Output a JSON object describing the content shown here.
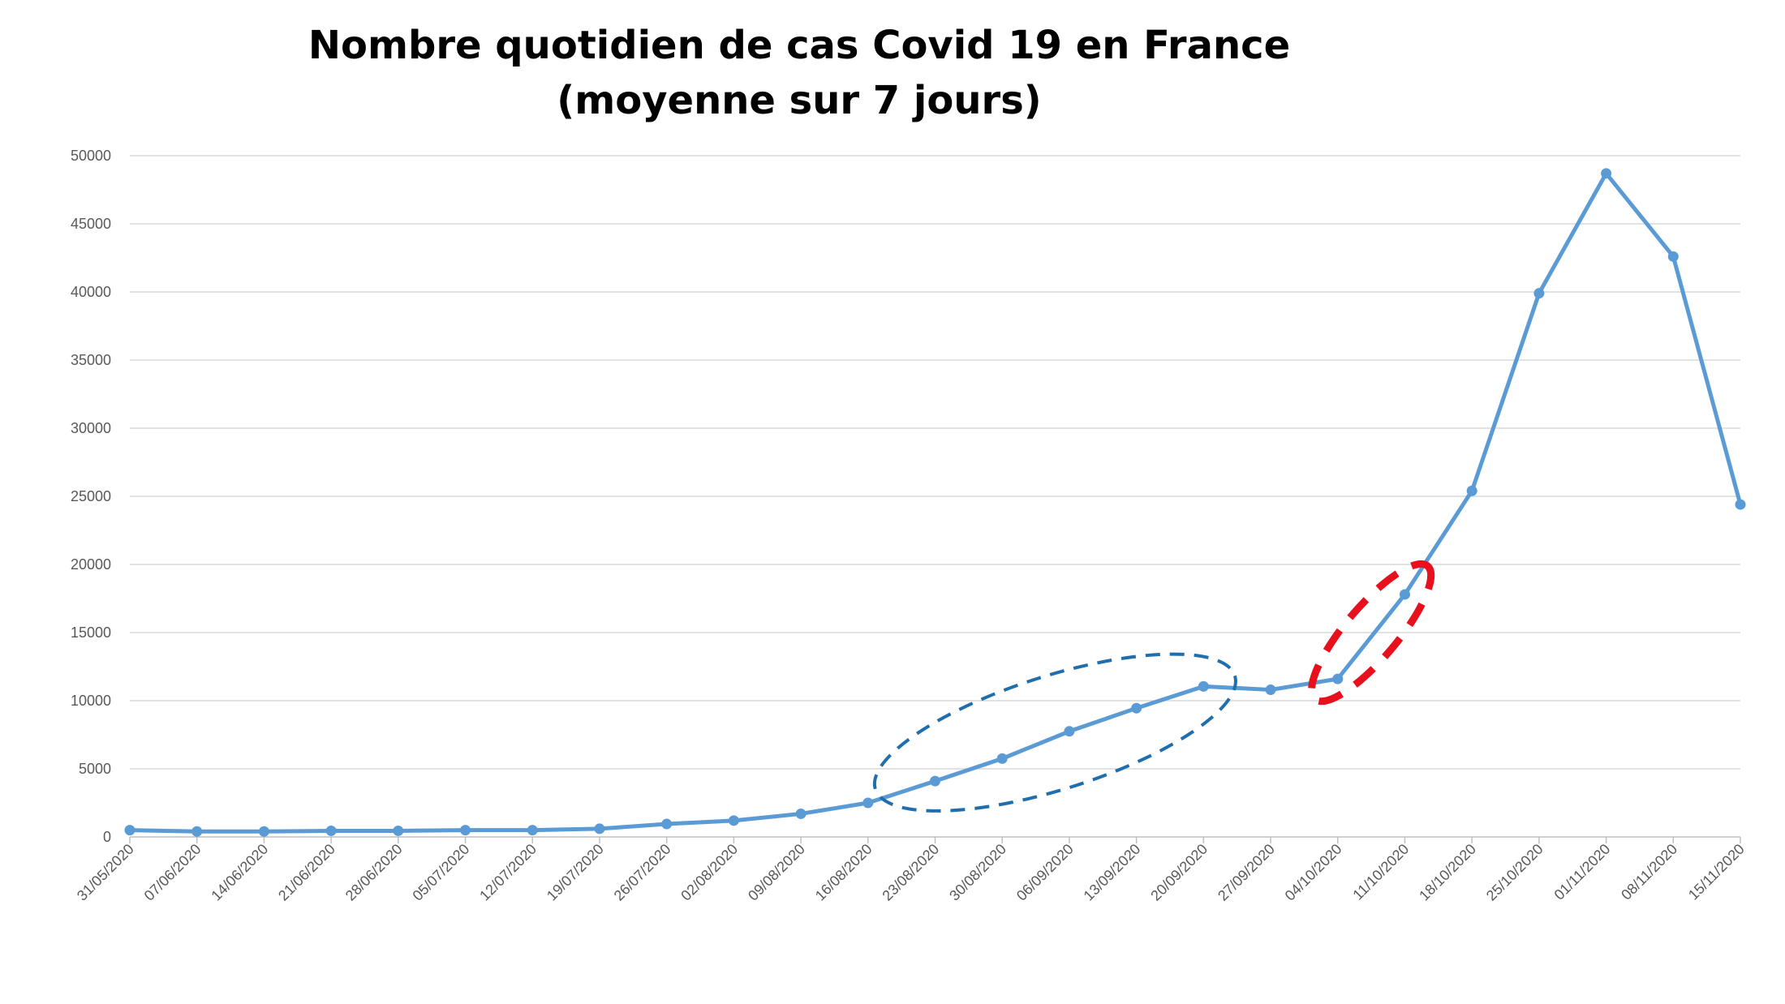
{
  "chart_data": {
    "type": "line",
    "title": "Nombre quotidien de cas Covid 19 en France",
    "subtitle": "(moyenne sur 7 jours)",
    "xlabel": "",
    "ylabel": "",
    "ylim": [
      0,
      50000
    ],
    "yticks": [
      0,
      5000,
      10000,
      15000,
      20000,
      25000,
      30000,
      35000,
      40000,
      45000,
      50000
    ],
    "grid": true,
    "legend": "none",
    "categories": [
      "31/05/2020",
      "07/06/2020",
      "14/06/2020",
      "21/06/2020",
      "28/06/2020",
      "05/07/2020",
      "12/07/2020",
      "19/07/2020",
      "26/07/2020",
      "02/08/2020",
      "09/08/2020",
      "16/08/2020",
      "23/08/2020",
      "30/08/2020",
      "06/09/2020",
      "13/09/2020",
      "20/09/2020",
      "27/09/2020",
      "04/10/2020",
      "11/10/2020",
      "18/10/2020",
      "25/10/2020",
      "01/11/2020",
      "08/11/2020",
      "15/11/2020"
    ],
    "series": [
      {
        "values": [
          500,
          400,
          400,
          450,
          450,
          500,
          500,
          600,
          950,
          1200,
          1700,
          2500,
          4100,
          5750,
          7750,
          9450,
          11050,
          10800,
          11600,
          17800,
          25400,
          39900,
          48700,
          42600,
          24400
        ],
        "color": "#5b9bd5"
      }
    ],
    "annotations": [
      {
        "shape": "ellipse",
        "style": "dashed",
        "color": "#1f6fae",
        "from": "23/08/2020",
        "to": "20/09/2020"
      },
      {
        "shape": "ellipse",
        "style": "dashed",
        "color": "#e8101c",
        "from": "04/10/2020",
        "to": "11/10/2020"
      }
    ],
    "colors": {
      "line": "#5b9bd5",
      "grid": "#d9d9d9",
      "axis": "#bfbfbf",
      "tick_text": "#595959",
      "ellipse_blue": "#1f6fae",
      "ellipse_red": "#e8101c"
    }
  }
}
